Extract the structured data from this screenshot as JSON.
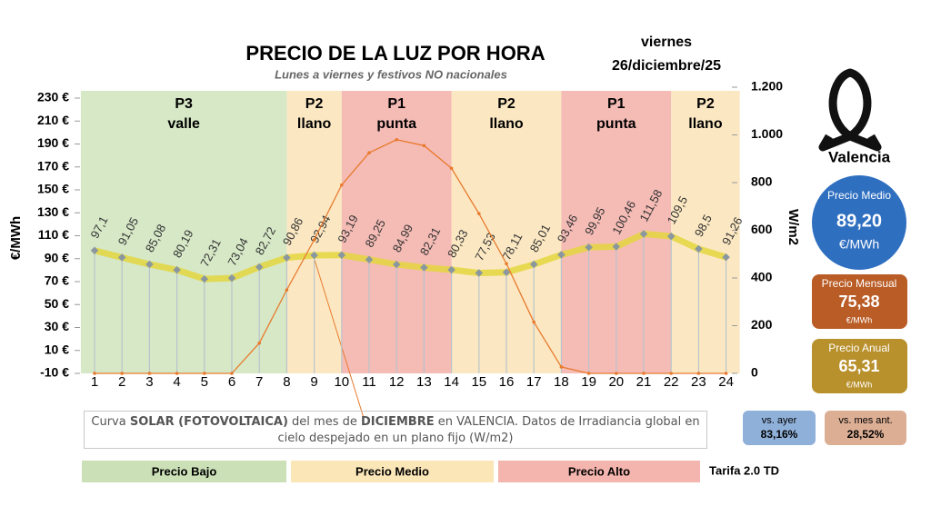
{
  "chart_data": {
    "type": "line",
    "title": "PRECIO DE LA LUZ POR HORA",
    "subtitle": "Lunes a viernes y festivos NO nacionales",
    "weekday": "viernes",
    "date": "26/diciembre/25",
    "ylabel": "€/MWh",
    "y2label": "W/m2",
    "categories": [
      "1",
      "2",
      "3",
      "4",
      "5",
      "6",
      "7",
      "8",
      "9",
      "10",
      "11",
      "12",
      "13",
      "14",
      "15",
      "16",
      "17",
      "18",
      "19",
      "20",
      "21",
      "22",
      "23",
      "24"
    ],
    "series": [
      {
        "color": "#e3d63e",
        "values": [
          97.1,
          91.05,
          85.08,
          80.19,
          72.31,
          73.04,
          82.72,
          90.86,
          92.94,
          93.19,
          89.25,
          84.99,
          82.31,
          80.33,
          77.53,
          78.11,
          85.01,
          93.46,
          99.95,
          100.46,
          111.58,
          109.5,
          98.5,
          91.26
        ],
        "value_labels": [
          "97,1",
          "91,05",
          "85,08",
          "80,19",
          "72,31",
          "73,04",
          "82,72",
          "90,86",
          "92,94",
          "93,19",
          "89,25",
          "84,99",
          "82,31",
          "80,33",
          "77,53",
          "78,11",
          "85,01",
          "93,46",
          "99,95",
          "100,46",
          "111,58",
          "109,5",
          "98,5",
          "91,26"
        ]
      },
      {
        "axis": "y2",
        "color": "#e87a2e",
        "values": [
          0,
          0,
          0,
          0,
          0,
          0,
          127,
          350,
          560,
          790,
          925,
          980,
          955,
          860,
          670,
          460,
          215,
          27,
          0,
          0,
          0,
          0,
          0,
          0
        ]
      }
    ],
    "ylim": [
      -10,
      230
    ],
    "yticks": [
      {
        "value": -10,
        "label": "-10 €"
      },
      {
        "value": 10,
        "label": "10 €"
      },
      {
        "value": 30,
        "label": "30 €"
      },
      {
        "value": 50,
        "label": "50 €"
      },
      {
        "value": 70,
        "label": "70 €"
      },
      {
        "value": 90,
        "label": "90 €"
      },
      {
        "value": 110,
        "label": "110 €"
      },
      {
        "value": 130,
        "label": "130 €"
      },
      {
        "value": 150,
        "label": "150 €"
      },
      {
        "value": 170,
        "label": "170 €"
      },
      {
        "value": 190,
        "label": "190 €"
      },
      {
        "value": 210,
        "label": "210 €"
      },
      {
        "value": 230,
        "label": "230 €"
      }
    ],
    "y2lim": [
      0,
      1200
    ],
    "y2ticks": [
      0,
      200,
      400,
      600,
      800,
      {
        "value": 1000,
        "label": "1.000"
      },
      {
        "value": 1200,
        "label": "1.200"
      }
    ],
    "periods": [
      {
        "name": "P3",
        "tier": "valle",
        "from": 0.5,
        "to": 8,
        "color": "#d6e8c6"
      },
      {
        "name": "P2",
        "tier": "llano",
        "from": 8,
        "to": 10,
        "color": "#fbe8c2"
      },
      {
        "name": "P1",
        "tier": "punta",
        "from": 10,
        "to": 14,
        "color": "#f5bbb5"
      },
      {
        "name": "P2",
        "tier": "llano",
        "from": 14,
        "to": 18,
        "color": "#fbe8c2"
      },
      {
        "name": "P1",
        "tier": "punta",
        "from": 18,
        "to": 22,
        "color": "#f5bbb5"
      },
      {
        "name": "P2",
        "tier": "llano",
        "from": 22,
        "to": 24.5,
        "color": "#fbe8c2"
      }
    ],
    "note": [
      "Curva ",
      "SOLAR (FOTOVOLTAICA)",
      " del mes de ",
      "DICIEMBRE",
      " en VALENCIA. Datos de Irradiancia global en cielo despejado en un plano fijo (W/m2)"
    ],
    "legend": [
      {
        "label": "Precio Bajo",
        "color": "#cbe0b7"
      },
      {
        "label": "Precio Medio",
        "color": "#fbe6b8"
      },
      {
        "label": "Precio Alto",
        "color": "#f4b5ae"
      }
    ],
    "tariff": "Tarifa 2.0 TD"
  },
  "panel": {
    "city": "Valencia",
    "average": {
      "label": "Precio Medio",
      "value": "89,20",
      "unit": "€/MWh"
    },
    "monthly": {
      "label": "Precio Mensual",
      "value": "75,38",
      "unit": "€/MWh"
    },
    "yearly": {
      "label": "Precio Anual",
      "value": "65,31",
      "unit": "€/MWh"
    },
    "vs_yesterday": {
      "label": "vs. ayer",
      "value": "83,16%"
    },
    "vs_last_month": {
      "label": "vs. mes ant.",
      "value": "28,52%"
    }
  }
}
